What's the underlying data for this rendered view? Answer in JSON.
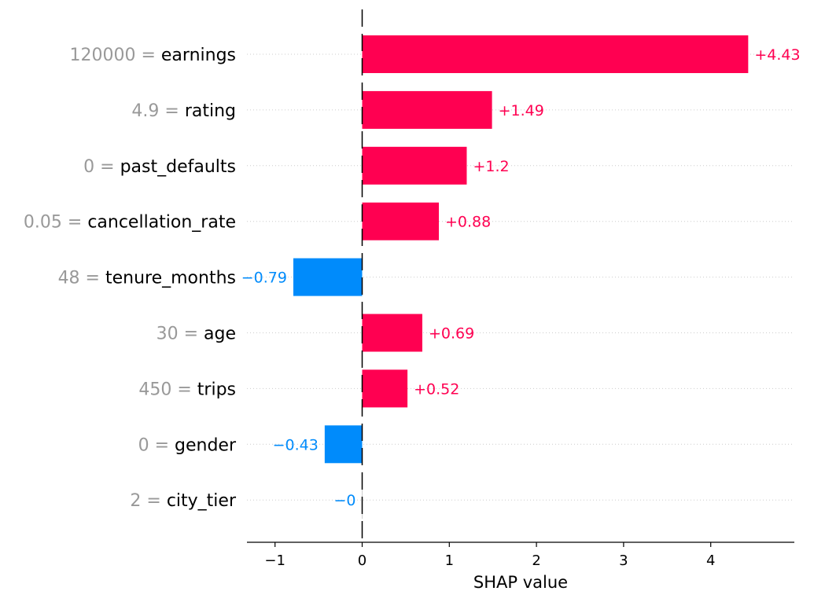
{
  "chart_data": {
    "type": "bar",
    "orientation": "horizontal",
    "title": "",
    "xlabel": "SHAP value",
    "ylabel": "",
    "xlim": [
      -1.32,
      4.95
    ],
    "xticks": [
      -1,
      0,
      1,
      2,
      3,
      4
    ],
    "xtick_labels": [
      "−1",
      "0",
      "1",
      "2",
      "3",
      "4"
    ],
    "grid": "dotted horizontal guide lines",
    "legend": "none",
    "features": [
      {
        "value_text": "120000",
        "name": "earnings",
        "shap": 4.43,
        "label": "+4.43"
      },
      {
        "value_text": "4.9",
        "name": "rating",
        "shap": 1.49,
        "label": "+1.49"
      },
      {
        "value_text": "0",
        "name": "past_defaults",
        "shap": 1.2,
        "label": "+1.2"
      },
      {
        "value_text": "0.05",
        "name": "cancellation_rate",
        "shap": 0.88,
        "label": "+0.88"
      },
      {
        "value_text": "48",
        "name": "tenure_months",
        "shap": -0.79,
        "label": "−0.79"
      },
      {
        "value_text": "30",
        "name": "age",
        "shap": 0.69,
        "label": "+0.69"
      },
      {
        "value_text": "450",
        "name": "trips",
        "shap": 0.52,
        "label": "+0.52"
      },
      {
        "value_text": "0",
        "name": "gender",
        "shap": -0.43,
        "label": "−0.43"
      },
      {
        "value_text": "2",
        "name": "city_tier",
        "shap": -0.0,
        "label": "−0"
      }
    ],
    "colors": {
      "positive": "#ff0051",
      "negative": "#008bfb",
      "feature_value": "#999999",
      "feature_name": "#000000",
      "axis": "#000000",
      "grid": "#cccccc"
    }
  }
}
